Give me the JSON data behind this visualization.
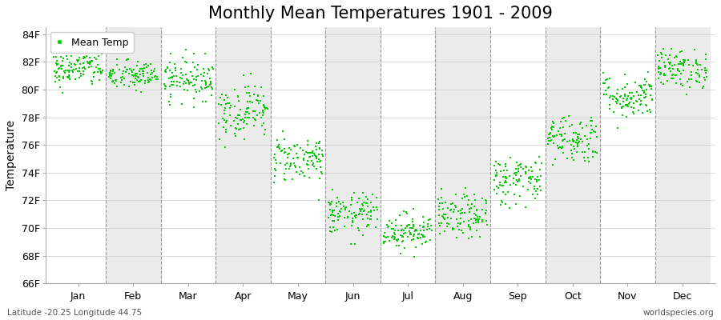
{
  "title": "Monthly Mean Temperatures 1901 - 2009",
  "ylabel": "Temperature",
  "ylim": [
    66,
    84.5
  ],
  "ytick_labels": [
    "66F",
    "68F",
    "70F",
    "72F",
    "74F",
    "76F",
    "78F",
    "80F",
    "82F",
    "84F"
  ],
  "ytick_values": [
    66,
    68,
    70,
    72,
    74,
    76,
    78,
    80,
    82,
    84
  ],
  "months": [
    "Jan",
    "Feb",
    "Mar",
    "Apr",
    "May",
    "Jun",
    "Jul",
    "Aug",
    "Sep",
    "Oct",
    "Nov",
    "Dec"
  ],
  "month_means": [
    81.5,
    81.0,
    80.8,
    78.5,
    75.0,
    71.0,
    69.8,
    70.8,
    73.5,
    76.5,
    79.5,
    81.5
  ],
  "month_stds": [
    0.65,
    0.55,
    0.75,
    1.0,
    0.85,
    0.75,
    0.65,
    0.8,
    0.9,
    0.9,
    0.8,
    0.7
  ],
  "n_years": 109,
  "marker_color": "#00CC00",
  "marker_size": 4,
  "bg_color": "#FFFFFF",
  "band_color": "#EBEBEB",
  "title_fontsize": 15,
  "label_fontsize": 10,
  "tick_fontsize": 9,
  "legend_label": "Mean Temp",
  "bottom_left": "Latitude -20.25 Longitude 44.75",
  "bottom_right": "worldspecies.org",
  "seed": 42
}
